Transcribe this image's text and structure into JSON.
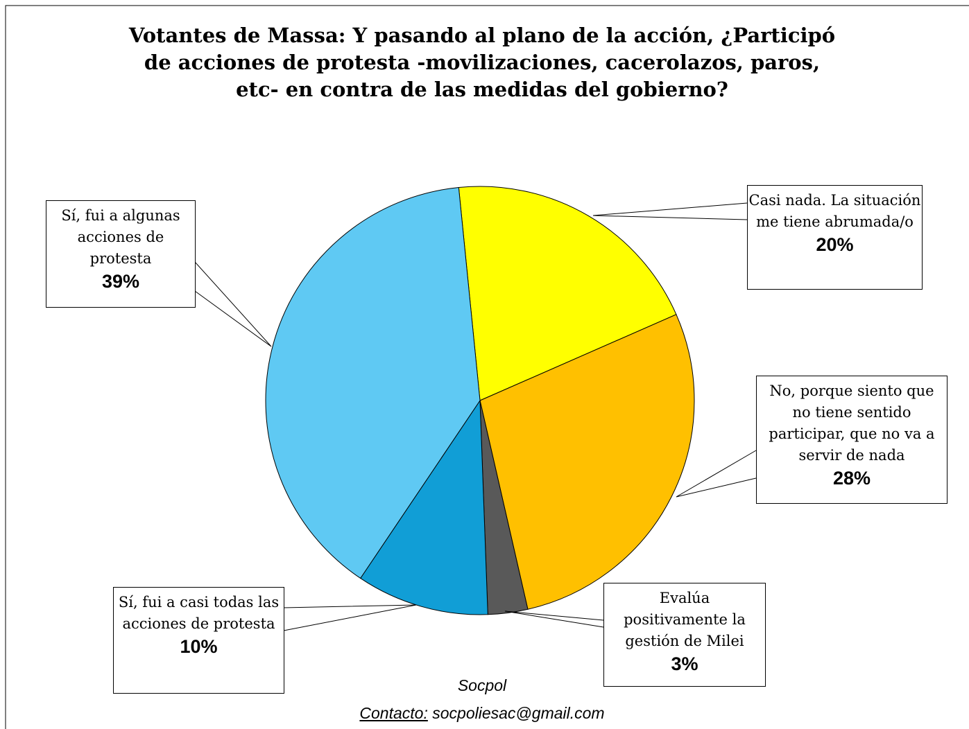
{
  "chart_data": {
    "type": "pie",
    "title": "Votantes de Massa: Y pasando al plano de la acción, ¿Participó de acciones de protesta -movilizaciones, cacerolazos, paros, etc- en contra de las medidas del gobierno?",
    "categories": [
      "Casi nada. La situación me tiene abrumada/o",
      "No, porque siento que no tiene sentido participar, que no va a servir de nada",
      "Evalúa positivamente la gestión de Milei",
      "Sí, fui a casi todas las acciones de protesta",
      "Sí, fui a algunas acciones de protesta"
    ],
    "values": [
      20,
      28,
      3,
      10,
      39
    ],
    "value_labels": [
      "20%",
      "28%",
      "3%",
      "10%",
      "39%"
    ],
    "colors": [
      "#ffff00",
      "#ffc000",
      "#595959",
      "#119ed6",
      "#5fc9f3"
    ],
    "source": "Socpol",
    "contact_label": "Contacto:",
    "contact": "socpoliesac@gmail.com"
  }
}
